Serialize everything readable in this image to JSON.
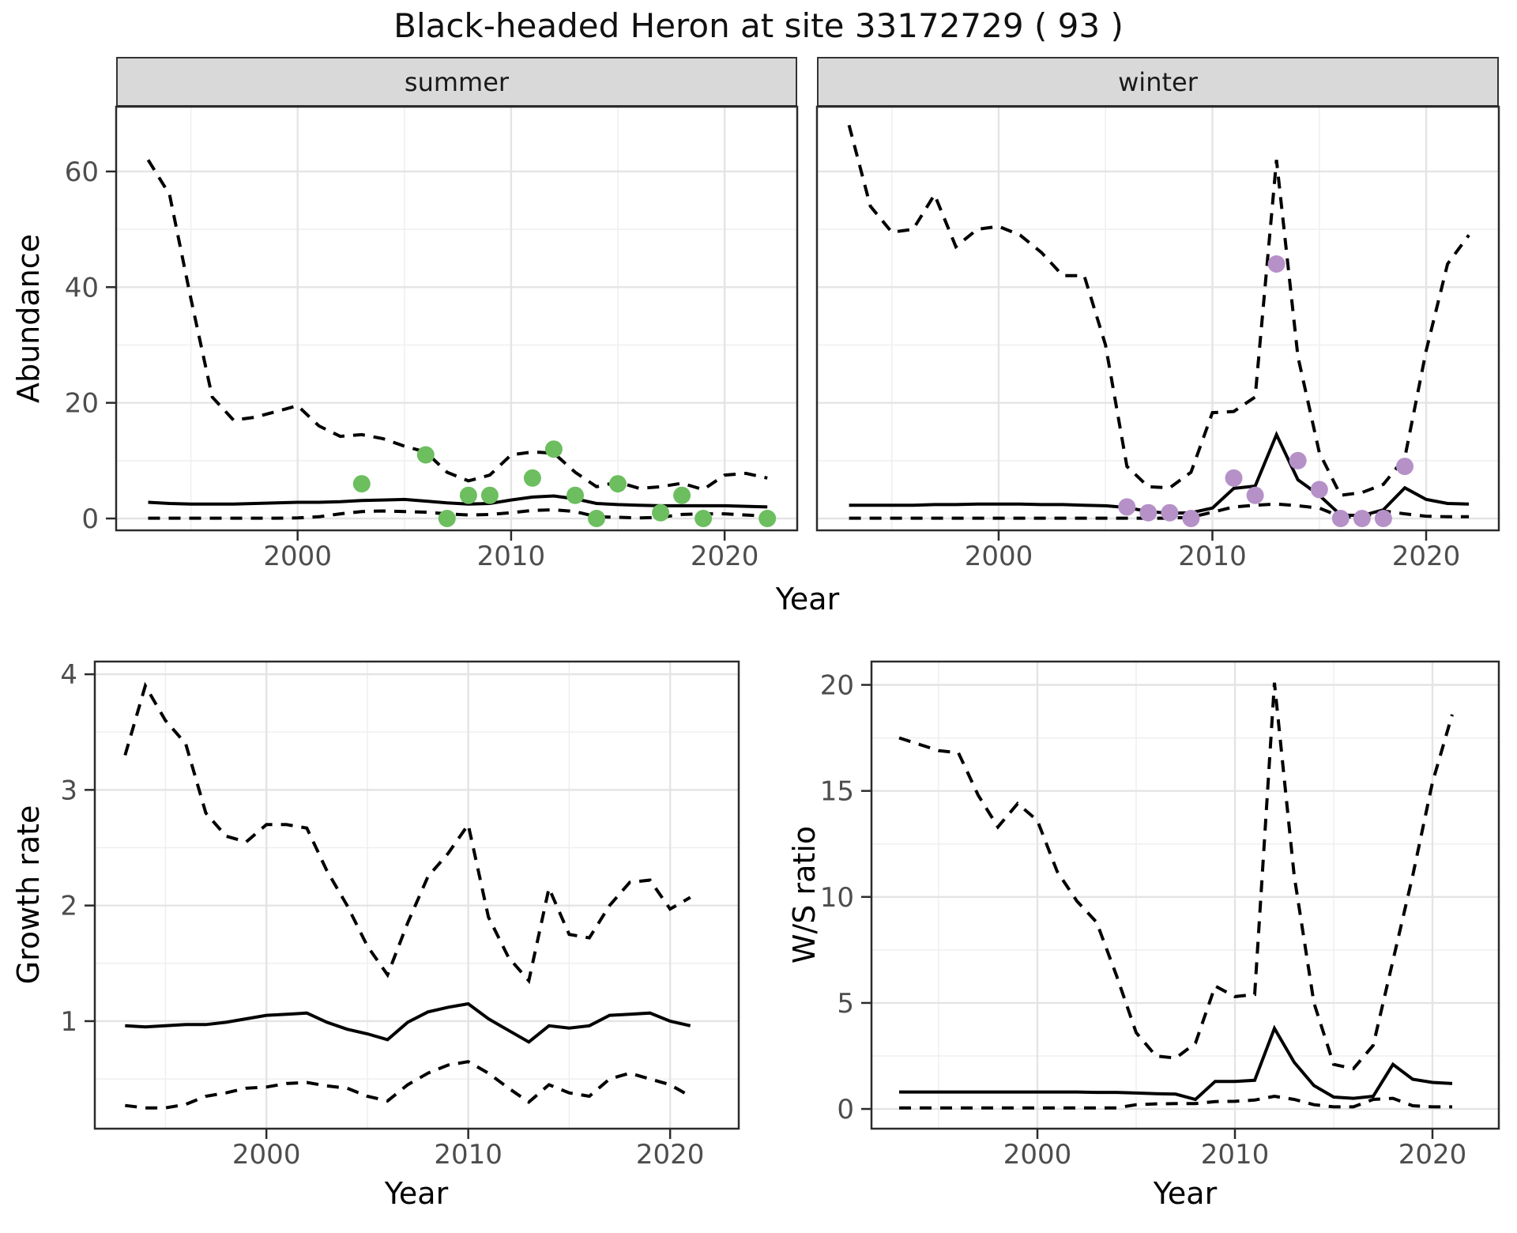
{
  "title": "Black-headed Heron at site 33172729 ( 93 )",
  "facets": {
    "summer": "summer",
    "winter": "winter"
  },
  "axis_titles": {
    "year": "Year",
    "abundance": "Abundance",
    "growth_rate": "Growth rate",
    "ws_ratio": "W/S ratio"
  },
  "colors": {
    "line": "#000000",
    "summer_points": "#6CBE5F",
    "winter_points": "#B591C8",
    "strip_bg": "#D9D9D9",
    "grid_major": "#E4E4E4",
    "grid_minor": "#EFEFEF",
    "axis_text": "#4D4D4D",
    "panel_border": "#2B2B2B"
  },
  "chart_data": [
    {
      "key": "abundance_summer",
      "type": "line",
      "facet_label": "summer",
      "xlabel": "Year",
      "ylabel": "Abundance",
      "xlim": [
        1991.5,
        2023.4
      ],
      "ylim": [
        -2.05,
        71.2
      ],
      "xticks": [
        2000,
        2010,
        2020
      ],
      "xtick_labels": [
        "2000",
        "2010",
        "2020"
      ],
      "minor_xticks": [
        1995,
        2005,
        2015
      ],
      "yticks": [
        0,
        20,
        40,
        60
      ],
      "ytick_labels": [
        "0",
        "20",
        "40",
        "60"
      ],
      "minor_yticks": [
        10,
        30,
        50
      ],
      "show_ytick_labels": true,
      "legend": "off",
      "x": [
        1993,
        1994,
        1995,
        1996,
        1997,
        1998,
        1999,
        2000,
        2001,
        2002,
        2003,
        2004,
        2005,
        2006,
        2007,
        2008,
        2009,
        2010,
        2011,
        2012,
        2013,
        2014,
        2015,
        2016,
        2017,
        2018,
        2019,
        2020,
        2021,
        2022
      ],
      "series": [
        {
          "name": "upper-ci",
          "style": "dashed",
          "values": [
            62,
            56,
            38,
            21,
            17,
            17.5,
            18.5,
            19.5,
            16,
            14.2,
            14.5,
            13.8,
            12.5,
            11.5,
            8,
            6.5,
            7.5,
            11,
            11.5,
            11.3,
            8,
            5.5,
            6.3,
            5.2,
            5.5,
            6.1,
            5,
            7.5,
            7.8,
            7
          ]
        },
        {
          "name": "mean",
          "style": "solid",
          "values": [
            2.8,
            2.6,
            2.5,
            2.5,
            2.5,
            2.6,
            2.7,
            2.8,
            2.8,
            2.9,
            3.1,
            3.2,
            3.3,
            3.0,
            2.7,
            2.5,
            2.6,
            3.2,
            3.7,
            3.9,
            3.4,
            2.6,
            2.4,
            2.3,
            2.2,
            2.2,
            2.2,
            2.2,
            2.1,
            2.0
          ]
        },
        {
          "name": "lower-ci",
          "style": "dashed",
          "values": [
            0.05,
            0.05,
            0.05,
            0.05,
            0.05,
            0.05,
            0.05,
            0.1,
            0.3,
            0.8,
            1.2,
            1.3,
            1.2,
            1.1,
            0.8,
            0.6,
            0.7,
            1.0,
            1.4,
            1.5,
            1.2,
            0.3,
            0.2,
            0.1,
            0.2,
            0.7,
            0.8,
            0.8,
            0.6,
            0.4
          ]
        }
      ],
      "points": {
        "name": "summer-observations",
        "color": "#6CBE5F",
        "x": [
          2003,
          2006,
          2007,
          2008,
          2009,
          2011,
          2012,
          2013,
          2014,
          2015,
          2017,
          2018,
          2019,
          2022
        ],
        "y": [
          6,
          11,
          0,
          4,
          4,
          7,
          12,
          4,
          0,
          6,
          1,
          4,
          0,
          0
        ]
      }
    },
    {
      "key": "abundance_winter",
      "type": "line",
      "facet_label": "winter",
      "xlabel": "Year",
      "ylabel": "Abundance",
      "xlim": [
        1991.5,
        2023.4
      ],
      "ylim": [
        -2.05,
        71.2
      ],
      "xticks": [
        2000,
        2010,
        2020
      ],
      "xtick_labels": [
        "2000",
        "2010",
        "2020"
      ],
      "minor_xticks": [
        1995,
        2005,
        2015
      ],
      "yticks": [
        0,
        20,
        40,
        60
      ],
      "ytick_labels": [
        "0",
        "20",
        "40",
        "60"
      ],
      "minor_yticks": [
        10,
        30,
        50
      ],
      "show_ytick_labels": false,
      "legend": "off",
      "x": [
        1993,
        1994,
        1995,
        1996,
        1997,
        1998,
        1999,
        2000,
        2001,
        2002,
        2003,
        2004,
        2005,
        2006,
        2007,
        2008,
        2009,
        2010,
        2011,
        2012,
        2013,
        2014,
        2015,
        2016,
        2017,
        2018,
        2019,
        2020,
        2021,
        2022
      ],
      "series": [
        {
          "name": "upper-ci",
          "style": "dashed",
          "values": [
            68,
            54,
            49.5,
            50,
            56,
            47,
            50,
            50.5,
            49,
            46,
            42,
            42,
            30,
            9,
            5.5,
            5.3,
            8,
            18.3,
            18.5,
            21,
            62,
            28,
            11.4,
            4,
            4.5,
            5.9,
            10.5,
            29,
            44,
            49
          ]
        },
        {
          "name": "mean",
          "style": "solid",
          "values": [
            2.3,
            2.3,
            2.3,
            2.3,
            2.4,
            2.4,
            2.5,
            2.5,
            2.5,
            2.4,
            2.4,
            2.3,
            2.2,
            1.9,
            1.2,
            0.9,
            1.0,
            1.8,
            5.2,
            5.6,
            14.5,
            6.7,
            4.0,
            0.6,
            0.5,
            1.5,
            5.3,
            3.3,
            2.6,
            2.5
          ]
        },
        {
          "name": "lower-ci",
          "style": "dashed",
          "values": [
            0.05,
            0.05,
            0.05,
            0.05,
            0.05,
            0.05,
            0.05,
            0.05,
            0.05,
            0.05,
            0.05,
            0.05,
            0.05,
            0.05,
            0.05,
            0.05,
            0.2,
            1.1,
            2.0,
            2.3,
            2.5,
            2.2,
            1.8,
            0.3,
            0.2,
            1.3,
            0.8,
            0.4,
            0.3,
            0.3
          ]
        }
      ],
      "points": {
        "name": "winter-observations",
        "color": "#B591C8",
        "x": [
          2006,
          2007,
          2008,
          2009,
          2011,
          2012,
          2013,
          2014,
          2015,
          2016,
          2017,
          2018,
          2019
        ],
        "y": [
          2,
          1,
          1,
          0,
          7,
          4,
          44,
          10,
          5,
          0,
          0,
          0,
          9
        ]
      }
    },
    {
      "key": "growth_rate",
      "type": "line",
      "facet_label": "",
      "xlabel": "Year",
      "ylabel": "Growth rate",
      "xlim": [
        1991.5,
        2023.4
      ],
      "ylim": [
        0.07,
        4.11
      ],
      "xticks": [
        2000,
        2010,
        2020
      ],
      "xtick_labels": [
        "2000",
        "2010",
        "2020"
      ],
      "minor_xticks": [
        1995,
        2005,
        2015
      ],
      "yticks": [
        1,
        2,
        3,
        4
      ],
      "ytick_labels": [
        "1",
        "2",
        "3",
        "4"
      ],
      "minor_yticks": [
        0.5,
        1.5,
        2.5,
        3.5
      ],
      "show_ytick_labels": true,
      "legend": "off",
      "x": [
        1993,
        1994,
        1995,
        1996,
        1997,
        1998,
        1999,
        2000,
        2001,
        2002,
        2003,
        2004,
        2005,
        2006,
        2007,
        2008,
        2009,
        2010,
        2011,
        2012,
        2013,
        2014,
        2015,
        2016,
        2017,
        2018,
        2019,
        2020,
        2021
      ],
      "series": [
        {
          "name": "upper-ci",
          "style": "dashed",
          "values": [
            3.3,
            3.9,
            3.6,
            3.4,
            2.8,
            2.6,
            2.55,
            2.7,
            2.7,
            2.67,
            2.3,
            2.0,
            1.65,
            1.4,
            1.85,
            2.25,
            2.45,
            2.7,
            1.9,
            1.55,
            1.35,
            2.15,
            1.75,
            1.72,
            2.0,
            2.2,
            2.22,
            1.97,
            2.07
          ]
        },
        {
          "name": "mean",
          "style": "solid",
          "values": [
            0.96,
            0.95,
            0.96,
            0.97,
            0.97,
            0.99,
            1.02,
            1.05,
            1.06,
            1.07,
            0.99,
            0.93,
            0.89,
            0.84,
            0.99,
            1.08,
            1.12,
            1.15,
            1.02,
            0.92,
            0.82,
            0.96,
            0.94,
            0.96,
            1.05,
            1.06,
            1.07,
            1.0,
            0.96
          ]
        },
        {
          "name": "lower-ci",
          "style": "dashed",
          "values": [
            0.27,
            0.25,
            0.25,
            0.28,
            0.35,
            0.38,
            0.42,
            0.43,
            0.46,
            0.47,
            0.44,
            0.42,
            0.35,
            0.31,
            0.45,
            0.55,
            0.62,
            0.65,
            0.55,
            0.42,
            0.3,
            0.45,
            0.38,
            0.35,
            0.5,
            0.55,
            0.5,
            0.45,
            0.35
          ]
        }
      ],
      "points": null
    },
    {
      "key": "ws_ratio",
      "type": "line",
      "facet_label": "",
      "xlabel": "Year",
      "ylabel": "W/S ratio",
      "xlim": [
        1991.6,
        2023.36
      ],
      "ylim": [
        -0.93,
        21.1
      ],
      "xticks": [
        2000,
        2010,
        2020
      ],
      "xtick_labels": [
        "2000",
        "2010",
        "2020"
      ],
      "minor_xticks": [
        1995,
        2005,
        2015
      ],
      "yticks": [
        0,
        5,
        10,
        15,
        20
      ],
      "ytick_labels": [
        "0",
        "5",
        "10",
        "15",
        "20"
      ],
      "minor_yticks": [
        2.5,
        7.5,
        12.5,
        17.5
      ],
      "show_ytick_labels": true,
      "legend": "off",
      "x": [
        1993,
        1994,
        1995,
        1996,
        1997,
        1998,
        1999,
        2000,
        2001,
        2002,
        2003,
        2004,
        2005,
        2006,
        2007,
        2008,
        2009,
        2010,
        2011,
        2012,
        2013,
        2014,
        2015,
        2016,
        2017,
        2018,
        2019,
        2020,
        2021
      ],
      "series": [
        {
          "name": "upper-ci",
          "style": "dashed",
          "values": [
            17.5,
            17.2,
            16.9,
            16.8,
            14.8,
            13.3,
            14.4,
            13.6,
            11.2,
            9.8,
            8.8,
            6.3,
            3.6,
            2.5,
            2.4,
            3.1,
            5.8,
            5.3,
            5.4,
            20.1,
            11,
            5.0,
            2.1,
            1.9,
            3.0,
            7.0,
            11,
            15.4,
            18.6
          ]
        },
        {
          "name": "mean",
          "style": "solid",
          "values": [
            0.8,
            0.8,
            0.8,
            0.8,
            0.8,
            0.8,
            0.8,
            0.8,
            0.8,
            0.8,
            0.78,
            0.78,
            0.75,
            0.72,
            0.7,
            0.45,
            1.3,
            1.3,
            1.35,
            3.8,
            2.2,
            1.1,
            0.56,
            0.5,
            0.6,
            2.1,
            1.4,
            1.25,
            1.2
          ]
        },
        {
          "name": "lower-ci",
          "style": "dashed",
          "values": [
            0.05,
            0.05,
            0.05,
            0.05,
            0.05,
            0.05,
            0.05,
            0.05,
            0.05,
            0.05,
            0.05,
            0.05,
            0.2,
            0.24,
            0.25,
            0.25,
            0.35,
            0.36,
            0.42,
            0.6,
            0.45,
            0.2,
            0.1,
            0.1,
            0.45,
            0.5,
            0.15,
            0.1,
            0.1
          ]
        }
      ],
      "points": null
    }
  ]
}
